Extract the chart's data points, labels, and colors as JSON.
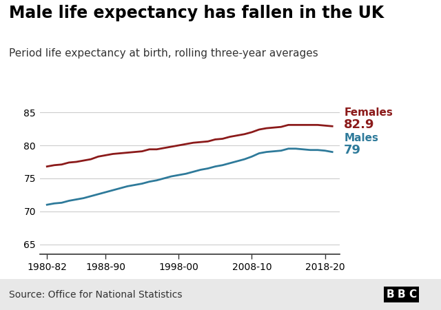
{
  "title": "Male life expectancy has fallen in the UK",
  "subtitle": "Period life expectancy at birth, rolling three-year averages",
  "source": "Source: Office for National Statistics",
  "females_color": "#8B1A1A",
  "males_color": "#2E7A9A",
  "background_color": "#ffffff",
  "grid_color": "#cccccc",
  "ylim": [
    63.5,
    87
  ],
  "yticks": [
    65,
    70,
    75,
    80,
    85
  ],
  "xtick_labels": [
    "1980-82",
    "1988-90",
    "1998-00",
    "2008-10",
    "2018-20"
  ],
  "xtick_positions": [
    1981,
    1989,
    1999,
    2009,
    2019
  ],
  "females_label": "Females",
  "females_value": "82.9",
  "males_label": "Males",
  "males_value": "79",
  "females_x": [
    1981,
    1982,
    1983,
    1984,
    1985,
    1986,
    1987,
    1988,
    1989,
    1990,
    1991,
    1992,
    1993,
    1994,
    1995,
    1996,
    1997,
    1998,
    1999,
    2000,
    2001,
    2002,
    2003,
    2004,
    2005,
    2006,
    2007,
    2008,
    2009,
    2010,
    2011,
    2012,
    2013,
    2014,
    2015,
    2016,
    2017,
    2018,
    2019,
    2020
  ],
  "females_y": [
    76.8,
    77.0,
    77.1,
    77.4,
    77.5,
    77.7,
    77.9,
    78.3,
    78.5,
    78.7,
    78.8,
    78.9,
    79.0,
    79.1,
    79.4,
    79.4,
    79.6,
    79.8,
    80.0,
    80.2,
    80.4,
    80.5,
    80.6,
    80.9,
    81.0,
    81.3,
    81.5,
    81.7,
    82.0,
    82.4,
    82.6,
    82.7,
    82.8,
    83.1,
    83.1,
    83.1,
    83.1,
    83.1,
    83.0,
    82.9
  ],
  "males_x": [
    1981,
    1982,
    1983,
    1984,
    1985,
    1986,
    1987,
    1988,
    1989,
    1990,
    1991,
    1992,
    1993,
    1994,
    1995,
    1996,
    1997,
    1998,
    1999,
    2000,
    2001,
    2002,
    2003,
    2004,
    2005,
    2006,
    2007,
    2008,
    2009,
    2010,
    2011,
    2012,
    2013,
    2014,
    2015,
    2016,
    2017,
    2018,
    2019,
    2020
  ],
  "males_y": [
    71.0,
    71.2,
    71.3,
    71.6,
    71.8,
    72.0,
    72.3,
    72.6,
    72.9,
    73.2,
    73.5,
    73.8,
    74.0,
    74.2,
    74.5,
    74.7,
    75.0,
    75.3,
    75.5,
    75.7,
    76.0,
    76.3,
    76.5,
    76.8,
    77.0,
    77.3,
    77.6,
    77.9,
    78.3,
    78.8,
    79.0,
    79.1,
    79.2,
    79.5,
    79.5,
    79.4,
    79.3,
    79.3,
    79.2,
    79.0
  ],
  "title_fontsize": 17,
  "subtitle_fontsize": 11,
  "label_fontsize": 11,
  "value_fontsize": 13,
  "tick_fontsize": 10,
  "source_fontsize": 10,
  "line_width": 2.0,
  "footer_color": "#e8e8e8",
  "bbc_color": "#000000"
}
